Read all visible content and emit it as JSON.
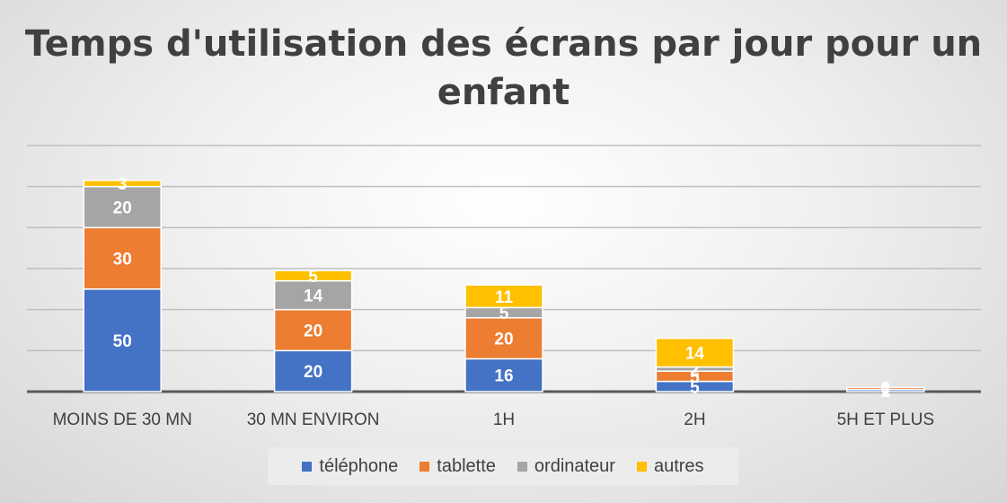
{
  "chart_data": {
    "type": "bar",
    "stacked": true,
    "title": "Temps d'utilisation des écrans par jour pour un enfant",
    "categories": [
      "MOINS DE 30 MN",
      "30 MN ENVIRON",
      "1H",
      "2H",
      "5H ET PLUS"
    ],
    "series": [
      {
        "name": "téléphone",
        "color": "#4472C4",
        "values": [
          50,
          20,
          16,
          5,
          1
        ]
      },
      {
        "name": "tablette",
        "color": "#ED7D31",
        "values": [
          30,
          20,
          20,
          5,
          1
        ]
      },
      {
        "name": "ordinateur",
        "color": "#A5A5A5",
        "values": [
          20,
          14,
          5,
          2,
          0
        ]
      },
      {
        "name": "autres",
        "color": "#FFC000",
        "values": [
          3,
          5,
          11,
          14,
          0
        ]
      }
    ],
    "ylim": [
      0,
      120
    ],
    "y_gridline_step": 20,
    "y_axis_labels_shown": false,
    "grid": true,
    "legend_position": "bottom",
    "data_labels": true
  }
}
